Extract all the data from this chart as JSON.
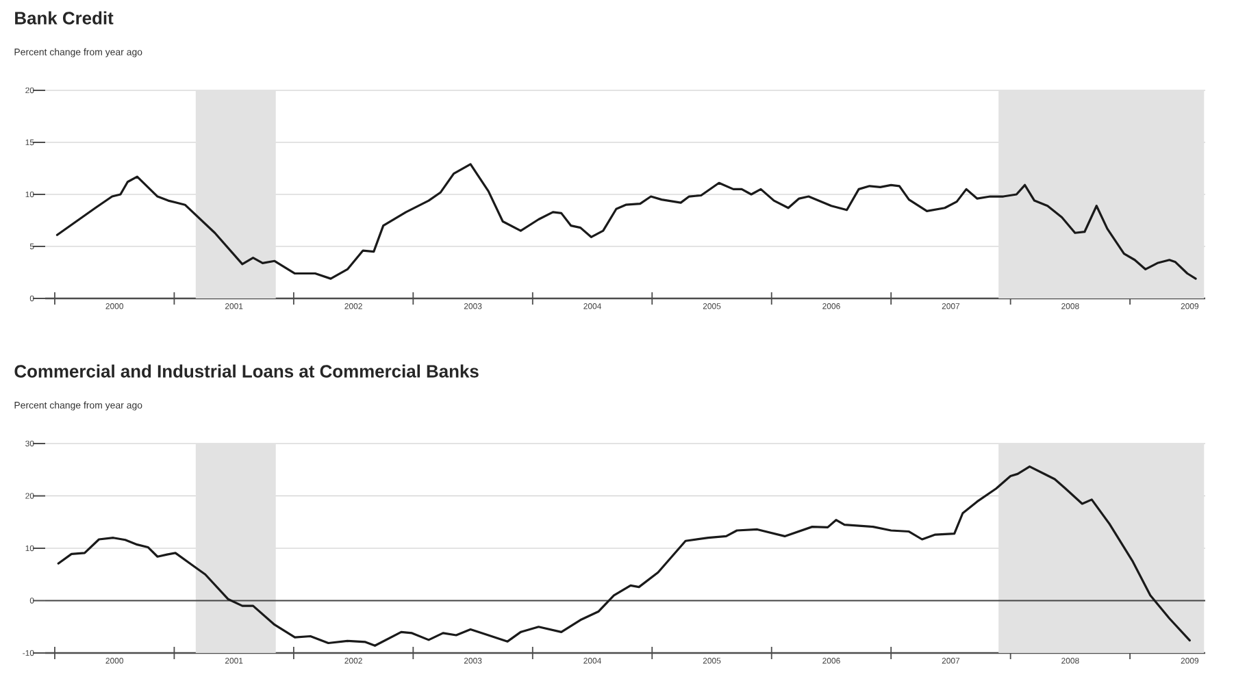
{
  "chart_data": [
    {
      "type": "line",
      "title": "Bank Credit",
      "subtitle": "Percent change from year ago",
      "color": "#1a1a1a",
      "grid": "y",
      "x": [
        2000.02,
        2000.34,
        2000.48,
        2000.55,
        2000.61,
        2000.69,
        2000.86,
        2000.95,
        2001.09,
        2001.34,
        2001.57,
        2001.66,
        2001.74,
        2001.84,
        2002.01,
        2002.18,
        2002.31,
        2002.45,
        2002.58,
        2002.67,
        2002.75,
        2002.94,
        2003.13,
        2003.23,
        2003.34,
        2003.48,
        2003.63,
        2003.75,
        2003.9,
        2004.05,
        2004.17,
        2004.24,
        2004.32,
        2004.4,
        2004.49,
        2004.59,
        2004.7,
        2004.78,
        2004.9,
        2004.99,
        2005.08,
        2005.24,
        2005.31,
        2005.41,
        2005.56,
        2005.68,
        2005.75,
        2005.83,
        2005.91,
        2006.02,
        2006.14,
        2006.23,
        2006.31,
        2006.5,
        2006.63,
        2006.73,
        2006.82,
        2006.91,
        2007.0,
        2007.07,
        2007.15,
        2007.3,
        2007.45,
        2007.55,
        2007.63,
        2007.72,
        2007.83,
        2007.94,
        2008.05,
        2008.12,
        2008.2,
        2008.31,
        2008.43,
        2008.54,
        2008.62,
        2008.72,
        2008.81,
        2008.95,
        2009.04,
        2009.13,
        2009.23,
        2009.33,
        2009.38,
        2009.48,
        2009.55
      ],
      "values": [
        6.1,
        8.7,
        9.8,
        10.0,
        11.2,
        11.7,
        9.8,
        9.4,
        9.0,
        6.3,
        3.3,
        3.9,
        3.4,
        3.6,
        2.4,
        2.4,
        1.9,
        2.8,
        4.6,
        4.5,
        7.0,
        8.3,
        9.4,
        10.2,
        12.0,
        12.9,
        10.3,
        7.4,
        6.5,
        7.6,
        8.3,
        8.2,
        7.0,
        6.8,
        5.9,
        6.5,
        8.6,
        9.0,
        9.1,
        9.8,
        9.5,
        9.2,
        9.8,
        9.9,
        11.1,
        10.5,
        10.5,
        10.0,
        10.5,
        9.4,
        8.7,
        9.6,
        9.8,
        8.9,
        8.5,
        10.5,
        10.8,
        10.7,
        10.9,
        10.8,
        9.5,
        8.4,
        8.7,
        9.3,
        10.5,
        9.6,
        9.8,
        9.8,
        10.0,
        10.9,
        9.4,
        8.9,
        7.8,
        6.3,
        6.4,
        8.9,
        6.7,
        4.3,
        3.7,
        2.8,
        3.4,
        3.7,
        3.5,
        2.4,
        1.9
      ],
      "xlim": [
        1999.92,
        2009.63
      ],
      "ylim": [
        0,
        20
      ],
      "xticks": [
        {
          "value": 2000,
          "label": null
        },
        {
          "value": 2001,
          "label": null
        },
        {
          "value": 2002,
          "label": null
        },
        {
          "value": 2003,
          "label": null
        },
        {
          "value": 2004,
          "label": null
        },
        {
          "value": 2005,
          "label": null
        },
        {
          "value": 2006,
          "label": null
        },
        {
          "value": 2007,
          "label": null
        },
        {
          "value": 2008,
          "label": null
        },
        {
          "value": 2009,
          "label": null
        },
        {
          "value": 2000.5,
          "label": "2000"
        },
        {
          "value": 2001.5,
          "label": "2001"
        },
        {
          "value": 2002.5,
          "label": "2002"
        },
        {
          "value": 2003.5,
          "label": "2003"
        },
        {
          "value": 2004.5,
          "label": "2004"
        },
        {
          "value": 2005.5,
          "label": "2005"
        },
        {
          "value": 2006.5,
          "label": "2006"
        },
        {
          "value": 2007.5,
          "label": "2007"
        },
        {
          "value": 2008.5,
          "label": "2008"
        },
        {
          "value": 2009.5,
          "label": "2009"
        }
      ],
      "yticks": [
        0,
        5,
        10,
        15,
        20
      ],
      "bands": [
        {
          "axis": "x",
          "from": 2001.18,
          "to": 2001.85,
          "color": "#e2e2e2"
        },
        {
          "axis": "x",
          "from": 2007.9,
          "to": 2009.62,
          "color": "#e2e2e2"
        }
      ]
    },
    {
      "type": "line",
      "title": "Commercial and Industrial Loans at Commercial Banks",
      "subtitle": "Percent change from year ago",
      "color": "#1a1a1a",
      "grid": "y",
      "x": [
        2000.03,
        2000.14,
        2000.25,
        2000.37,
        2000.49,
        2000.59,
        2000.69,
        2000.78,
        2000.86,
        2000.94,
        2001.01,
        2001.15,
        2001.26,
        2001.45,
        2001.57,
        2001.66,
        2001.84,
        2002.01,
        2002.14,
        2002.29,
        2002.45,
        2002.6,
        2002.68,
        2002.9,
        2002.99,
        2003.13,
        2003.25,
        2003.36,
        2003.48,
        2003.59,
        2003.79,
        2003.9,
        2004.05,
        2004.24,
        2004.4,
        2004.55,
        2004.68,
        2004.82,
        2004.89,
        2005.05,
        2005.28,
        2005.47,
        2005.62,
        2005.71,
        2005.88,
        2006.11,
        2006.34,
        2006.47,
        2006.54,
        2006.61,
        2006.85,
        2007.0,
        2007.15,
        2007.26,
        2007.37,
        2007.53,
        2007.6,
        2007.72,
        2007.88,
        2008.0,
        2008.06,
        2008.16,
        2008.37,
        2008.46,
        2008.6,
        2008.68,
        2008.83,
        2009.02,
        2009.17,
        2009.33,
        2009.5
      ],
      "values": [
        7.1,
        8.9,
        9.1,
        11.7,
        12.0,
        11.6,
        10.7,
        10.2,
        8.4,
        8.8,
        9.1,
        6.8,
        5.0,
        0.3,
        -1.0,
        -1.0,
        -4.6,
        -7.0,
        -6.8,
        -8.1,
        -7.7,
        -7.9,
        -8.6,
        -6.0,
        -6.2,
        -7.5,
        -6.2,
        -6.6,
        -5.5,
        -6.3,
        -7.8,
        -6.0,
        -5.0,
        -6.0,
        -3.7,
        -2.1,
        1.0,
        2.9,
        2.6,
        5.4,
        11.4,
        12.0,
        12.3,
        13.4,
        13.6,
        12.3,
        14.1,
        14.0,
        15.4,
        14.5,
        14.1,
        13.4,
        13.2,
        11.7,
        12.6,
        12.8,
        16.7,
        18.9,
        21.4,
        23.8,
        24.2,
        25.6,
        23.2,
        21.4,
        18.5,
        19.3,
        14.6,
        7.6,
        1.0,
        -3.4,
        -7.6
      ],
      "xlim": [
        1999.92,
        2009.63
      ],
      "ylim": [
        -10,
        30
      ],
      "xticks": [
        {
          "value": 2000,
          "label": null
        },
        {
          "value": 2001,
          "label": null
        },
        {
          "value": 2002,
          "label": null
        },
        {
          "value": 2003,
          "label": null
        },
        {
          "value": 2004,
          "label": null
        },
        {
          "value": 2005,
          "label": null
        },
        {
          "value": 2006,
          "label": null
        },
        {
          "value": 2007,
          "label": null
        },
        {
          "value": 2008,
          "label": null
        },
        {
          "value": 2009,
          "label": null
        },
        {
          "value": 2000.5,
          "label": "2000"
        },
        {
          "value": 2001.5,
          "label": "2001"
        },
        {
          "value": 2002.5,
          "label": "2002"
        },
        {
          "value": 2003.5,
          "label": "2003"
        },
        {
          "value": 2004.5,
          "label": "2004"
        },
        {
          "value": 2005.5,
          "label": "2005"
        },
        {
          "value": 2006.5,
          "label": "2006"
        },
        {
          "value": 2007.5,
          "label": "2007"
        },
        {
          "value": 2008.5,
          "label": "2008"
        },
        {
          "value": 2009.5,
          "label": "2009"
        }
      ],
      "yticks": [
        -10,
        0,
        10,
        20,
        30
      ],
      "bands": [
        {
          "axis": "x",
          "from": 2001.18,
          "to": 2001.85,
          "color": "#e2e2e2"
        },
        {
          "axis": "x",
          "from": 2007.9,
          "to": 2009.62,
          "color": "#e2e2e2"
        }
      ],
      "ref_lines": [
        {
          "axis": "y",
          "value": 0,
          "color": "#444444"
        }
      ]
    }
  ]
}
